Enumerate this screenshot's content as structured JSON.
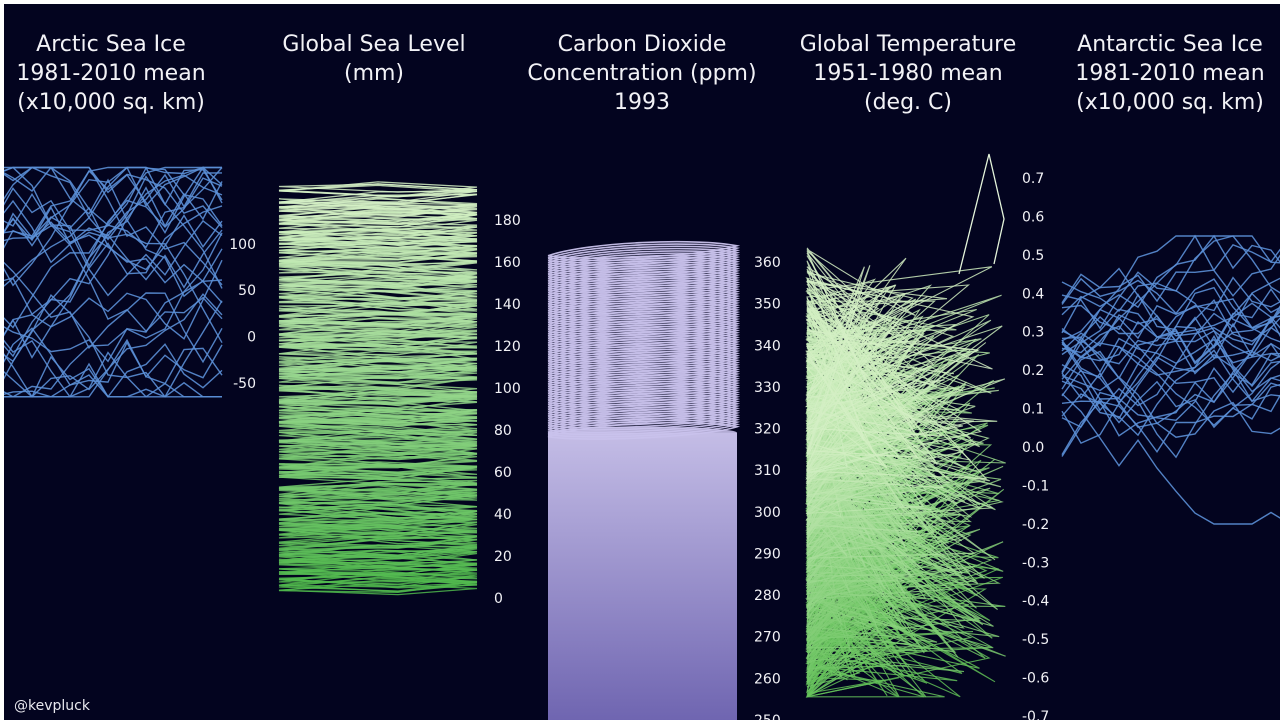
{
  "colors": {
    "background": "#03041f",
    "ice": "#5b8fd6",
    "sea_level": "#9ed88f",
    "co2": "#c9c2ec",
    "co2_fill_top": "#c4bde6",
    "co2_fill_bottom": "#6e64b0",
    "temperature": "#a6de95",
    "tick_text": "#f2f2f6"
  },
  "credit": "@kevpluck",
  "chart_data": [
    {
      "type": "line",
      "id": "arctic",
      "title_lines": [
        "Arctic Sea Ice",
        "1981-2010 mean",
        "(x10,000 sq. km)"
      ],
      "y_ticks": [
        100,
        50,
        0,
        -50
      ],
      "ylim": [
        -75,
        130
      ],
      "value_range": [
        -60,
        140
      ],
      "series_count": 34
    },
    {
      "type": "line",
      "id": "sea_level",
      "title_lines": [
        "Global Sea Level",
        "(mm)"
      ],
      "y_ticks": [
        180,
        160,
        140,
        120,
        100,
        80,
        60,
        40,
        20,
        0
      ],
      "ylim": [
        0,
        180
      ],
      "value_range": [
        5,
        195
      ],
      "loops": 260
    },
    {
      "type": "area",
      "id": "co2",
      "title_lines": [
        "Carbon Dioxide",
        "Concentration (ppm)",
        "1993"
      ],
      "y_ticks": [
        360,
        350,
        340,
        330,
        320,
        310,
        300,
        290,
        280,
        270,
        260,
        250
      ],
      "ylim": [
        250,
        360
      ],
      "fill_level": 319,
      "value_range": [
        319,
        363
      ],
      "loops": 80
    },
    {
      "type": "line",
      "id": "temperature",
      "title_lines": [
        "Global Temperature",
        "1951-1980 mean",
        "(deg. C)"
      ],
      "y_ticks": [
        0.7,
        0.6,
        0.5,
        0.4,
        0.3,
        0.2,
        0.1,
        0.0,
        -0.1,
        -0.2,
        -0.3,
        -0.4,
        -0.5,
        -0.6,
        -0.7
      ],
      "y_tick_labels": [
        "0.7",
        "0.6",
        "0.5",
        "0.4",
        "0.3",
        "0.2",
        "0.1",
        "0.0",
        "-0.1",
        "-0.2",
        "-0.3",
        "-0.4",
        "-0.5",
        "-0.6",
        "-0.7"
      ],
      "ylim": [
        -0.7,
        0.7
      ],
      "value_range": [
        -0.65,
        0.78
      ],
      "series_count": 140
    },
    {
      "type": "line",
      "id": "antarctic",
      "title_lines": [
        "Antarctic Sea Ice",
        "1981-2010 mean",
        "(x10,000 sq. km)"
      ],
      "y_ticks": [],
      "series_count": 34
    }
  ]
}
